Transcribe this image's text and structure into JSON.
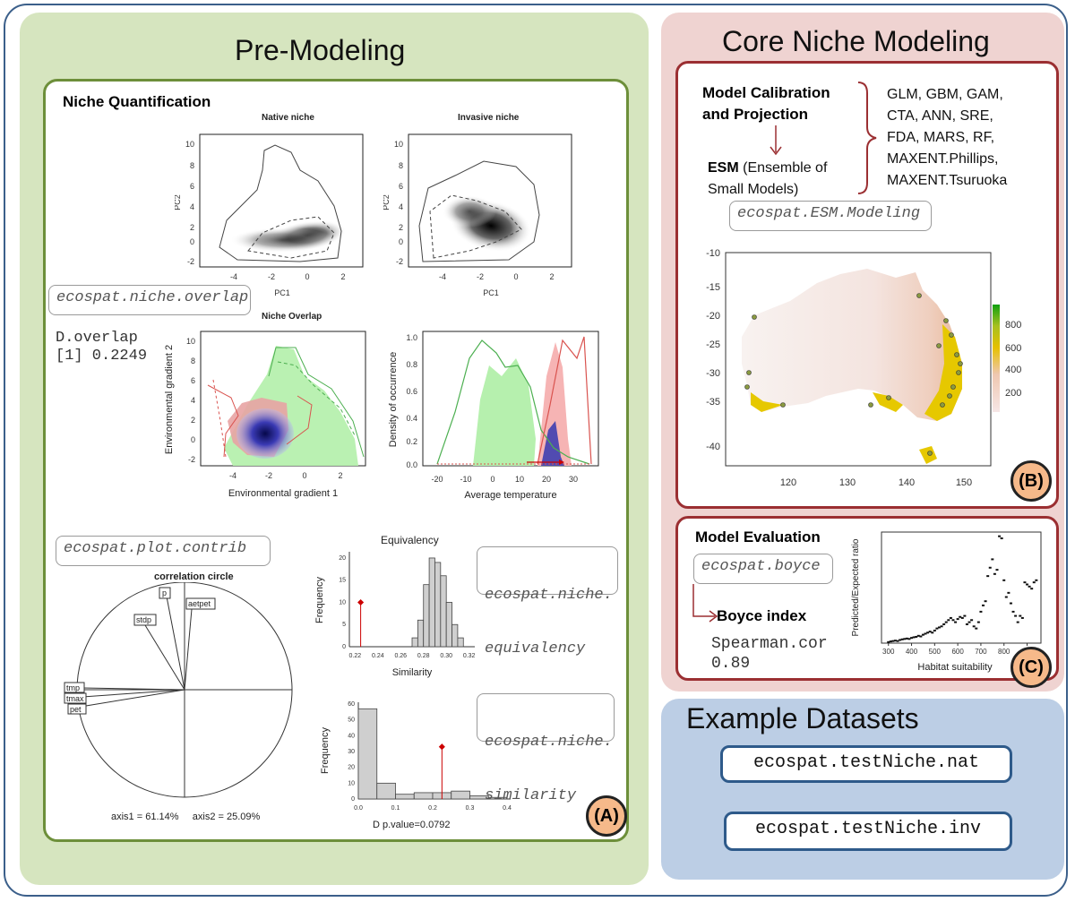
{
  "panels": {
    "pre_modeling": {
      "title": "Pre-Modeling",
      "badge": "(A)",
      "section_title": "Niche Quantification",
      "native_niche_title": "Native niche",
      "invasive_niche_title": "Invasive niche",
      "niche_overlap_title": "Niche Overlap",
      "pc1_label": "PC1",
      "pc2_label": "PC2",
      "env_gradient_1": "Environmental gradient 1",
      "env_gradient_2": "Environmental gradient 2",
      "density_ylabel": "Density of occurrence",
      "avg_temp_xlabel": "Average temperature",
      "overlap_function": "ecospat.niche.overlap",
      "overlap_output_line1": "D.overlap",
      "overlap_output_line2": "[1] 0.2249",
      "contrib_function": "ecospat.plot.contrib",
      "correlation_circle_title": "correlation circle",
      "axis_summary": "axis1 = 61.14%     axis2 = 25.09%",
      "variables": [
        "p",
        "aetpet",
        "stdp",
        "tmp",
        "tmax",
        "pet"
      ],
      "equivalency_title": "Equivalency",
      "equivalency_function_line1": "ecospat.niche.",
      "equivalency_function_line2": "equivalency",
      "similarity_function_line1": "ecospat.niche.",
      "similarity_function_line2": "similarity",
      "frequency_label": "Frequency",
      "similarity_xlabel": "Similarity",
      "d_pvalue_label": "D    p.value=0.0792"
    },
    "core": {
      "title": "Core Niche Modeling",
      "badge_b": "(B)",
      "badge_c": "(C)",
      "calibration_line1": "Model Calibration",
      "calibration_line2": "and Projection",
      "esm_bold": "ESM",
      "esm_rest_line1": " (Ensemble of",
      "esm_line2": "Small Models)",
      "models": [
        "GLM, GBM, GAM,",
        "CTA, ANN,  SRE,",
        "FDA, MARS, RF,",
        "MAXENT.Phillips,",
        "MAXENT.Tsuruoka"
      ],
      "esm_function": "ecospat.ESM.Modeling",
      "evaluation_title": "Model Evaluation",
      "boyce_function": "ecospat.boyce",
      "boyce_index_label": "Boyce index",
      "spearman_line1": "Spearman.cor",
      "spearman_line2": "0.89",
      "boyce_ylabel": "Predicted/Expected ratio",
      "boyce_xlabel": "Habitat suitability"
    },
    "examples": {
      "title": "Example Datasets",
      "datasets": [
        "ecospat.testNiche.nat",
        "ecospat.testNiche.inv"
      ]
    }
  },
  "chart_data": [
    {
      "type": "scatter",
      "name": "boyce-curve",
      "x_ticks": [
        300,
        400,
        500,
        600,
        700,
        800,
        900
      ],
      "y_ticks": [],
      "xlabel": "Habitat suitability",
      "ylabel": "Predicted/Expected ratio",
      "xlim": [
        270,
        960
      ],
      "ylim": [
        0,
        5.3
      ],
      "x": [
        300,
        310,
        320,
        330,
        340,
        350,
        360,
        370,
        380,
        390,
        400,
        410,
        420,
        430,
        440,
        450,
        460,
        470,
        480,
        490,
        500,
        510,
        520,
        530,
        540,
        550,
        560,
        570,
        580,
        590,
        600,
        610,
        620,
        630,
        640,
        650,
        660,
        670,
        680,
        690,
        700,
        710,
        720,
        730,
        740,
        750,
        760,
        770,
        780,
        790,
        800,
        810,
        820,
        830,
        840,
        850,
        860,
        870,
        880,
        890,
        900,
        910,
        920,
        930,
        940
      ],
      "y": [
        0.05,
        0.08,
        0.1,
        0.12,
        0.1,
        0.15,
        0.18,
        0.2,
        0.22,
        0.2,
        0.25,
        0.28,
        0.3,
        0.35,
        0.32,
        0.4,
        0.45,
        0.5,
        0.55,
        0.5,
        0.6,
        0.7,
        0.75,
        0.8,
        0.9,
        1.0,
        1.1,
        1.2,
        1.1,
        1.0,
        1.15,
        1.25,
        1.2,
        1.3,
        0.9,
        1.0,
        1.1,
        0.8,
        0.7,
        1.0,
        1.5,
        1.8,
        2.0,
        3.2,
        3.6,
        4.0,
        3.3,
        3.5,
        5.1,
        5.0,
        3.0,
        2.2,
        2.4,
        1.9,
        1.5,
        1.3,
        1.0,
        1.3,
        1.2,
        2.9,
        2.8,
        2.7,
        2.6,
        2.9,
        3.0
      ]
    },
    {
      "type": "bar",
      "name": "equivalency-histogram",
      "title": "Equivalency",
      "xlabel": "Similarity",
      "ylabel": "Frequency",
      "x_ticks": [
        0.22,
        0.24,
        0.26,
        0.28,
        0.3,
        0.32
      ],
      "y_ticks": [
        0,
        5,
        10,
        15,
        20
      ],
      "xlim": [
        0.215,
        0.325
      ],
      "ylim": [
        0,
        21
      ],
      "bins": [
        0.27,
        0.275,
        0.28,
        0.285,
        0.29,
        0.295,
        0.3,
        0.305,
        0.31
      ],
      "values": [
        2,
        6,
        14,
        20,
        19,
        16,
        10,
        5,
        2
      ],
      "bin_width": 0.005,
      "observed": 0.2249,
      "observed_y": 10
    },
    {
      "type": "bar",
      "name": "similarity-histogram",
      "xlabel": "D    p.value=0.0792",
      "ylabel": "Frequency",
      "x_ticks": [
        0.0,
        0.1,
        0.2,
        0.3,
        0.4
      ],
      "y_ticks": [
        0,
        10,
        20,
        30,
        40,
        50,
        60
      ],
      "xlim": [
        0,
        0.4
      ],
      "ylim": [
        0,
        60
      ],
      "bins": [
        0.0,
        0.05,
        0.1,
        0.15,
        0.2,
        0.25,
        0.3,
        0.35
      ],
      "values": [
        57,
        10,
        3,
        4,
        4,
        5,
        2,
        1
      ],
      "bin_width": 0.05,
      "observed": 0.2249,
      "observed_y": 33
    }
  ]
}
